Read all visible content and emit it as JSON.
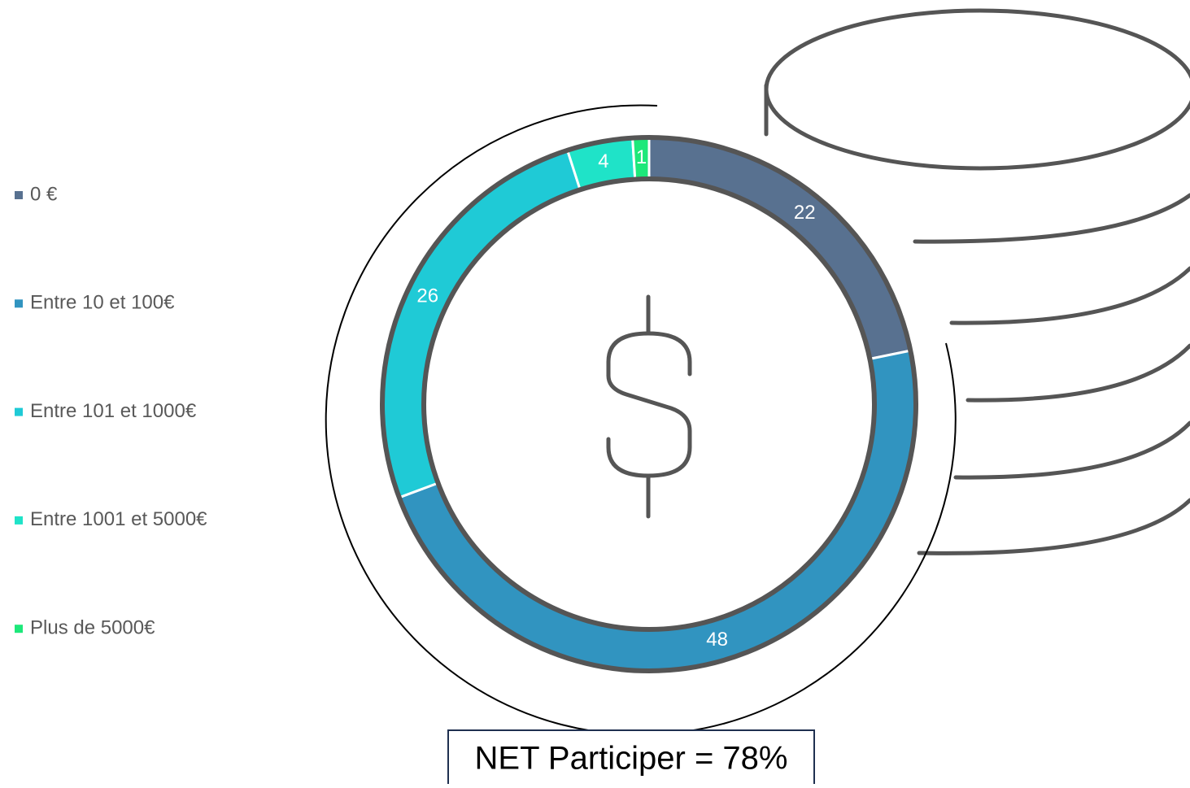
{
  "chart_data": {
    "type": "pie",
    "categories": [
      "0 €",
      "Entre 10 et 100€",
      "Entre 101 et 1000€",
      "Entre 1001 et 5000€",
      "Plus de 5000€"
    ],
    "values": [
      22,
      48,
      26,
      4,
      1
    ],
    "colors": [
      "#587190",
      "#3194c0",
      "#1fcad6",
      "#1fe3c8",
      "#1de87a"
    ],
    "annotation": "NET Participer = 78%",
    "legend": "left"
  }
}
